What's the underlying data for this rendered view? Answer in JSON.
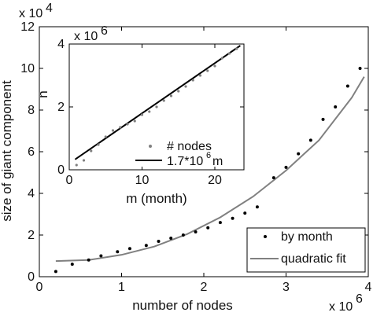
{
  "chart_data": [
    {
      "type": "scatter",
      "xlabel": "number of nodes",
      "ylabel": "size of giant component",
      "x_multiplier_label": "x 10",
      "x_multiplier_exponent": "6",
      "y_multiplier_label": "x 10",
      "y_multiplier_exponent": "4",
      "xlim": [
        0,
        4
      ],
      "ylim": [
        0,
        12
      ],
      "xticks": [
        "0",
        "1",
        "2",
        "3",
        "4"
      ],
      "yticks": [
        "0",
        "2",
        "4",
        "6",
        "8",
        "10",
        "12"
      ],
      "legend_position": "bottom-right",
      "series": [
        {
          "name": "by month",
          "style": "points",
          "color": "#000000",
          "x": [
            0.2,
            0.4,
            0.6,
            0.75,
            0.95,
            1.1,
            1.3,
            1.45,
            1.6,
            1.75,
            1.9,
            2.05,
            2.2,
            2.35,
            2.5,
            2.65,
            2.85,
            3.0,
            3.15,
            3.3,
            3.45,
            3.6,
            3.75,
            3.9
          ],
          "y": [
            0.25,
            0.6,
            0.8,
            1.0,
            1.2,
            1.35,
            1.5,
            1.7,
            1.85,
            2.0,
            2.15,
            2.35,
            2.6,
            2.8,
            3.05,
            3.35,
            4.75,
            5.25,
            5.9,
            6.55,
            7.55,
            8.15,
            9.15,
            10.0
          ]
        },
        {
          "name": "quadratic fit",
          "style": "line",
          "color": "#808080",
          "x": [
            0.2,
            0.6,
            1.0,
            1.4,
            1.8,
            2.2,
            2.6,
            3.0,
            3.4,
            3.8,
            3.95
          ],
          "y": [
            0.75,
            0.8,
            1.05,
            1.45,
            2.05,
            2.85,
            3.85,
            5.1,
            6.55,
            8.6,
            9.6
          ]
        }
      ]
    },
    {
      "type": "scatter",
      "xlabel": "m (month)",
      "ylabel": "n",
      "y_multiplier_label": "x 10",
      "y_multiplier_exponent": "6",
      "xlim": [
        0,
        24
      ],
      "ylim": [
        0,
        4
      ],
      "xticks": [
        "0",
        "10",
        "20"
      ],
      "yticks": [
        "0",
        "2",
        "4"
      ],
      "legend_position": "bottom-right",
      "series": [
        {
          "name": "# nodes",
          "style": "points",
          "color": "#808080",
          "x": [
            1,
            2,
            3,
            4,
            5,
            6,
            7,
            8,
            9,
            10,
            11,
            12,
            13,
            14,
            15,
            16,
            17,
            18,
            19,
            20,
            21,
            22,
            23
          ],
          "y": [
            0.15,
            0.3,
            0.6,
            0.8,
            1.05,
            1.25,
            1.35,
            1.45,
            1.55,
            1.75,
            1.85,
            2.0,
            2.2,
            2.35,
            2.5,
            2.65,
            2.85,
            3.0,
            3.15,
            3.3,
            3.55,
            3.7,
            3.85
          ]
        },
        {
          "name": "1.7*10",
          "name_exponent": "6",
          "name_suffix": "m",
          "style": "line",
          "color": "#000000",
          "x": [
            0.8,
            23.5
          ],
          "y": [
            0.33,
            3.95
          ]
        }
      ]
    }
  ]
}
